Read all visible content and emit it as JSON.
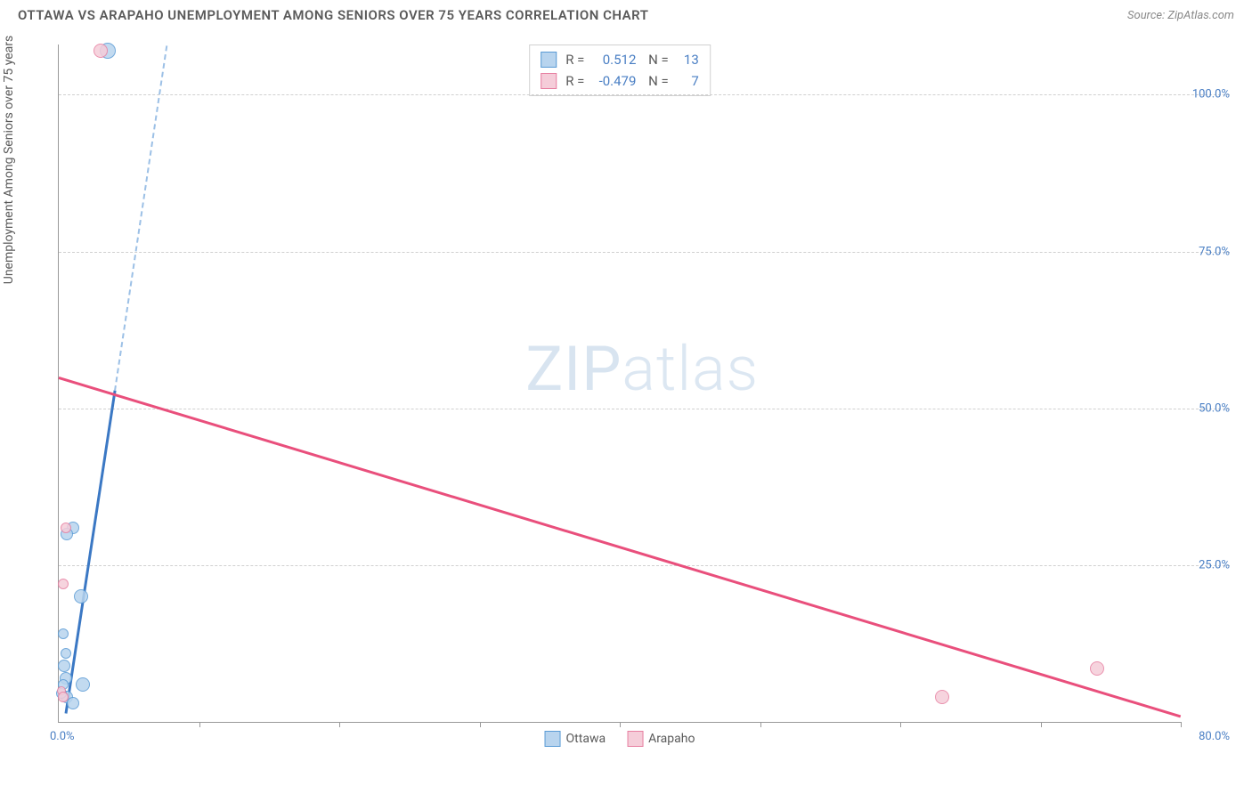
{
  "title": "OTTAWA VS ARAPAHO UNEMPLOYMENT AMONG SENIORS OVER 75 YEARS CORRELATION CHART",
  "source": "Source: ZipAtlas.com",
  "ylabel": "Unemployment Among Seniors over 75 years",
  "watermark_a": "ZIP",
  "watermark_b": "atlas",
  "chart": {
    "type": "scatter",
    "xlim": [
      0,
      80
    ],
    "ylim": [
      0,
      108
    ],
    "x_start_label": "0.0%",
    "x_end_label": "80.0%",
    "yticks": [
      25,
      50,
      75,
      100
    ],
    "ytick_labels": [
      "25.0%",
      "50.0%",
      "75.0%",
      "100.0%"
    ],
    "xticks": [
      10,
      20,
      30,
      40,
      50,
      60,
      70,
      80
    ],
    "grid_color": "#d0d0d0",
    "series": [
      {
        "name": "Ottawa",
        "fill": "#b8d4ee",
        "stroke": "#5a9bd5",
        "trend_color": "#3b78c4",
        "trend_dash_color": "#9cc0e6",
        "R": "0.512",
        "N": "13",
        "points": [
          {
            "x": 3.5,
            "y": 107,
            "r": 9
          },
          {
            "x": 1.0,
            "y": 31,
            "r": 7
          },
          {
            "x": 0.6,
            "y": 30,
            "r": 7
          },
          {
            "x": 1.6,
            "y": 20,
            "r": 8
          },
          {
            "x": 0.3,
            "y": 14,
            "r": 6
          },
          {
            "x": 0.5,
            "y": 11,
            "r": 6
          },
          {
            "x": 0.4,
            "y": 9,
            "r": 7
          },
          {
            "x": 0.5,
            "y": 7,
            "r": 7
          },
          {
            "x": 0.3,
            "y": 6,
            "r": 6
          },
          {
            "x": 1.7,
            "y": 6,
            "r": 8
          },
          {
            "x": 0.6,
            "y": 4,
            "r": 7
          },
          {
            "x": 1.0,
            "y": 3,
            "r": 7
          },
          {
            "x": 0.2,
            "y": 4.5,
            "r": 6
          }
        ],
        "trend": {
          "x1": 0.5,
          "y1": 1.5,
          "x2": 4.0,
          "y2": 53
        },
        "trend_dash": {
          "x1": 4.0,
          "y1": 53,
          "x2": 7.7,
          "y2": 108
        }
      },
      {
        "name": "Arapaho",
        "fill": "#f5cdd9",
        "stroke": "#e77fa1",
        "trend_color": "#e94f7c",
        "R": "-0.479",
        "N": "7",
        "points": [
          {
            "x": 3.0,
            "y": 107,
            "r": 8
          },
          {
            "x": 0.5,
            "y": 31,
            "r": 6
          },
          {
            "x": 0.3,
            "y": 22,
            "r": 6
          },
          {
            "x": 0.2,
            "y": 5,
            "r": 5
          },
          {
            "x": 0.3,
            "y": 4,
            "r": 6
          },
          {
            "x": 63,
            "y": 4,
            "r": 8
          },
          {
            "x": 74,
            "y": 8.5,
            "r": 8
          }
        ],
        "trend": {
          "x1": 0,
          "y1": 55,
          "x2": 80,
          "y2": 1
        }
      }
    ]
  },
  "legend": {
    "items": [
      {
        "label": "Ottawa",
        "fill": "#b8d4ee",
        "stroke": "#5a9bd5"
      },
      {
        "label": "Arapaho",
        "fill": "#f5cdd9",
        "stroke": "#e77fa1"
      }
    ]
  }
}
